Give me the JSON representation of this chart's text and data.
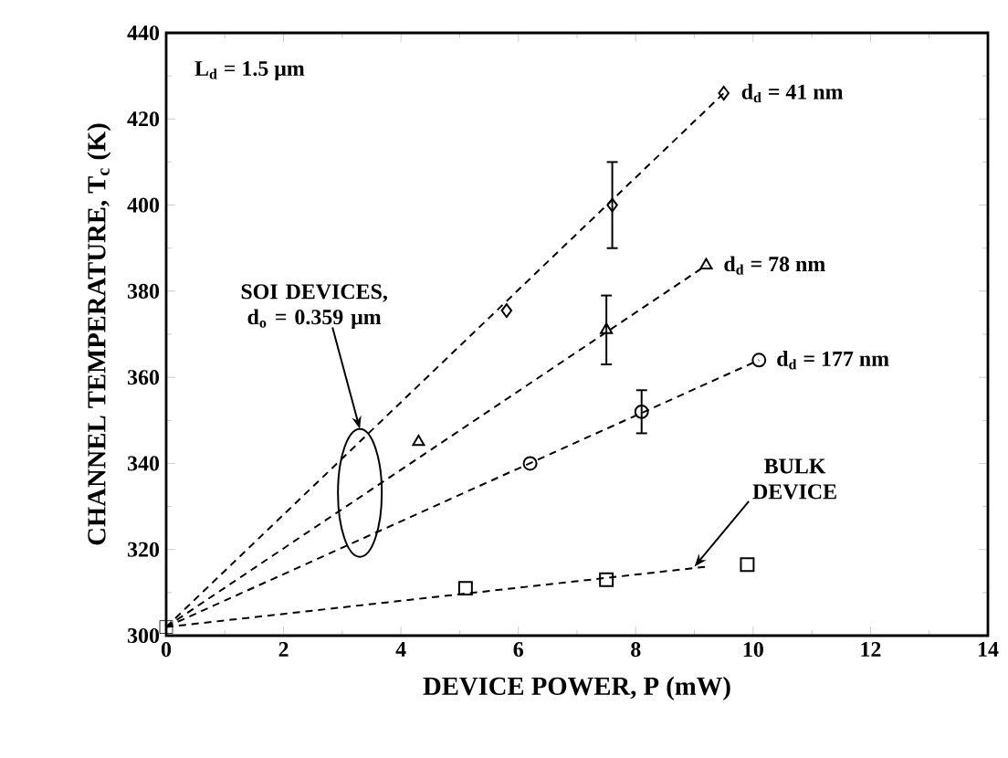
{
  "chart_data": {
    "type": "scatter",
    "xlabel": "DEVICE POWER, P (mW)",
    "ylabel": "CHANNEL TEMPERATURE, T$_{c}$ (K)",
    "xlim": [
      0,
      14
    ],
    "ylim": [
      300,
      440
    ],
    "xticks": [
      0,
      2,
      4,
      6,
      8,
      10,
      12,
      14
    ],
    "yticks": [
      300,
      320,
      340,
      360,
      380,
      400,
      420,
      440
    ],
    "annotations": [
      "L$_{d}$ = 1.5 μm",
      {
        "text": "SOI DEVICES, d$_{o}$ = 0.359 μm",
        "x": 3.3,
        "y": 348
      },
      {
        "text": "BULK DEVICE",
        "x": 9.0,
        "y": 316
      }
    ],
    "series": [
      {
        "name": "d$_{d}$ = 41 nm",
        "color": "#000000",
        "marker": "diamond",
        "x": [
          5.8,
          7.6,
          9.5
        ],
        "values": [
          375.5,
          400,
          426
        ],
        "errors": [
          null,
          10,
          null
        ]
      },
      {
        "name": "d$_{d}$ = 78 nm",
        "color": "#000000",
        "marker": "triangle",
        "x": [
          4.3,
          7.5,
          9.2
        ],
        "values": [
          345,
          371,
          386
        ],
        "errors": [
          null,
          8,
          null
        ]
      },
      {
        "name": "d$_{d}$ = 177 nm",
        "color": "#000000",
        "marker": "circle",
        "x": [
          6.2,
          8.1,
          10.1
        ],
        "values": [
          340,
          352,
          364
        ],
        "errors": [
          null,
          5,
          null
        ]
      },
      {
        "color": "#000000",
        "marker": "square",
        "x": [
          5.1,
          7.5,
          9.9
        ],
        "values": [
          311,
          313,
          316.5
        ]
      },
      {
        "color": "#000000",
        "marker": "square",
        "x": [
          0
        ],
        "values": [
          302
        ]
      },
      {
        "type": "line",
        "line_style": "dashed",
        "color": "#000000",
        "x": [
          0,
          9.5
        ],
        "values": [
          302,
          426
        ]
      },
      {
        "type": "line",
        "line_style": "dashed",
        "color": "#000000",
        "x": [
          0,
          9.2
        ],
        "values": [
          302,
          386
        ]
      },
      {
        "type": "line",
        "line_style": "dashed",
        "color": "#000000",
        "x": [
          0,
          10.1
        ],
        "values": [
          302,
          364
        ]
      },
      {
        "type": "line",
        "line_style": "dashed",
        "color": "#000000",
        "x": [
          0,
          9.2
        ],
        "values": [
          302,
          316
        ]
      }
    ]
  }
}
